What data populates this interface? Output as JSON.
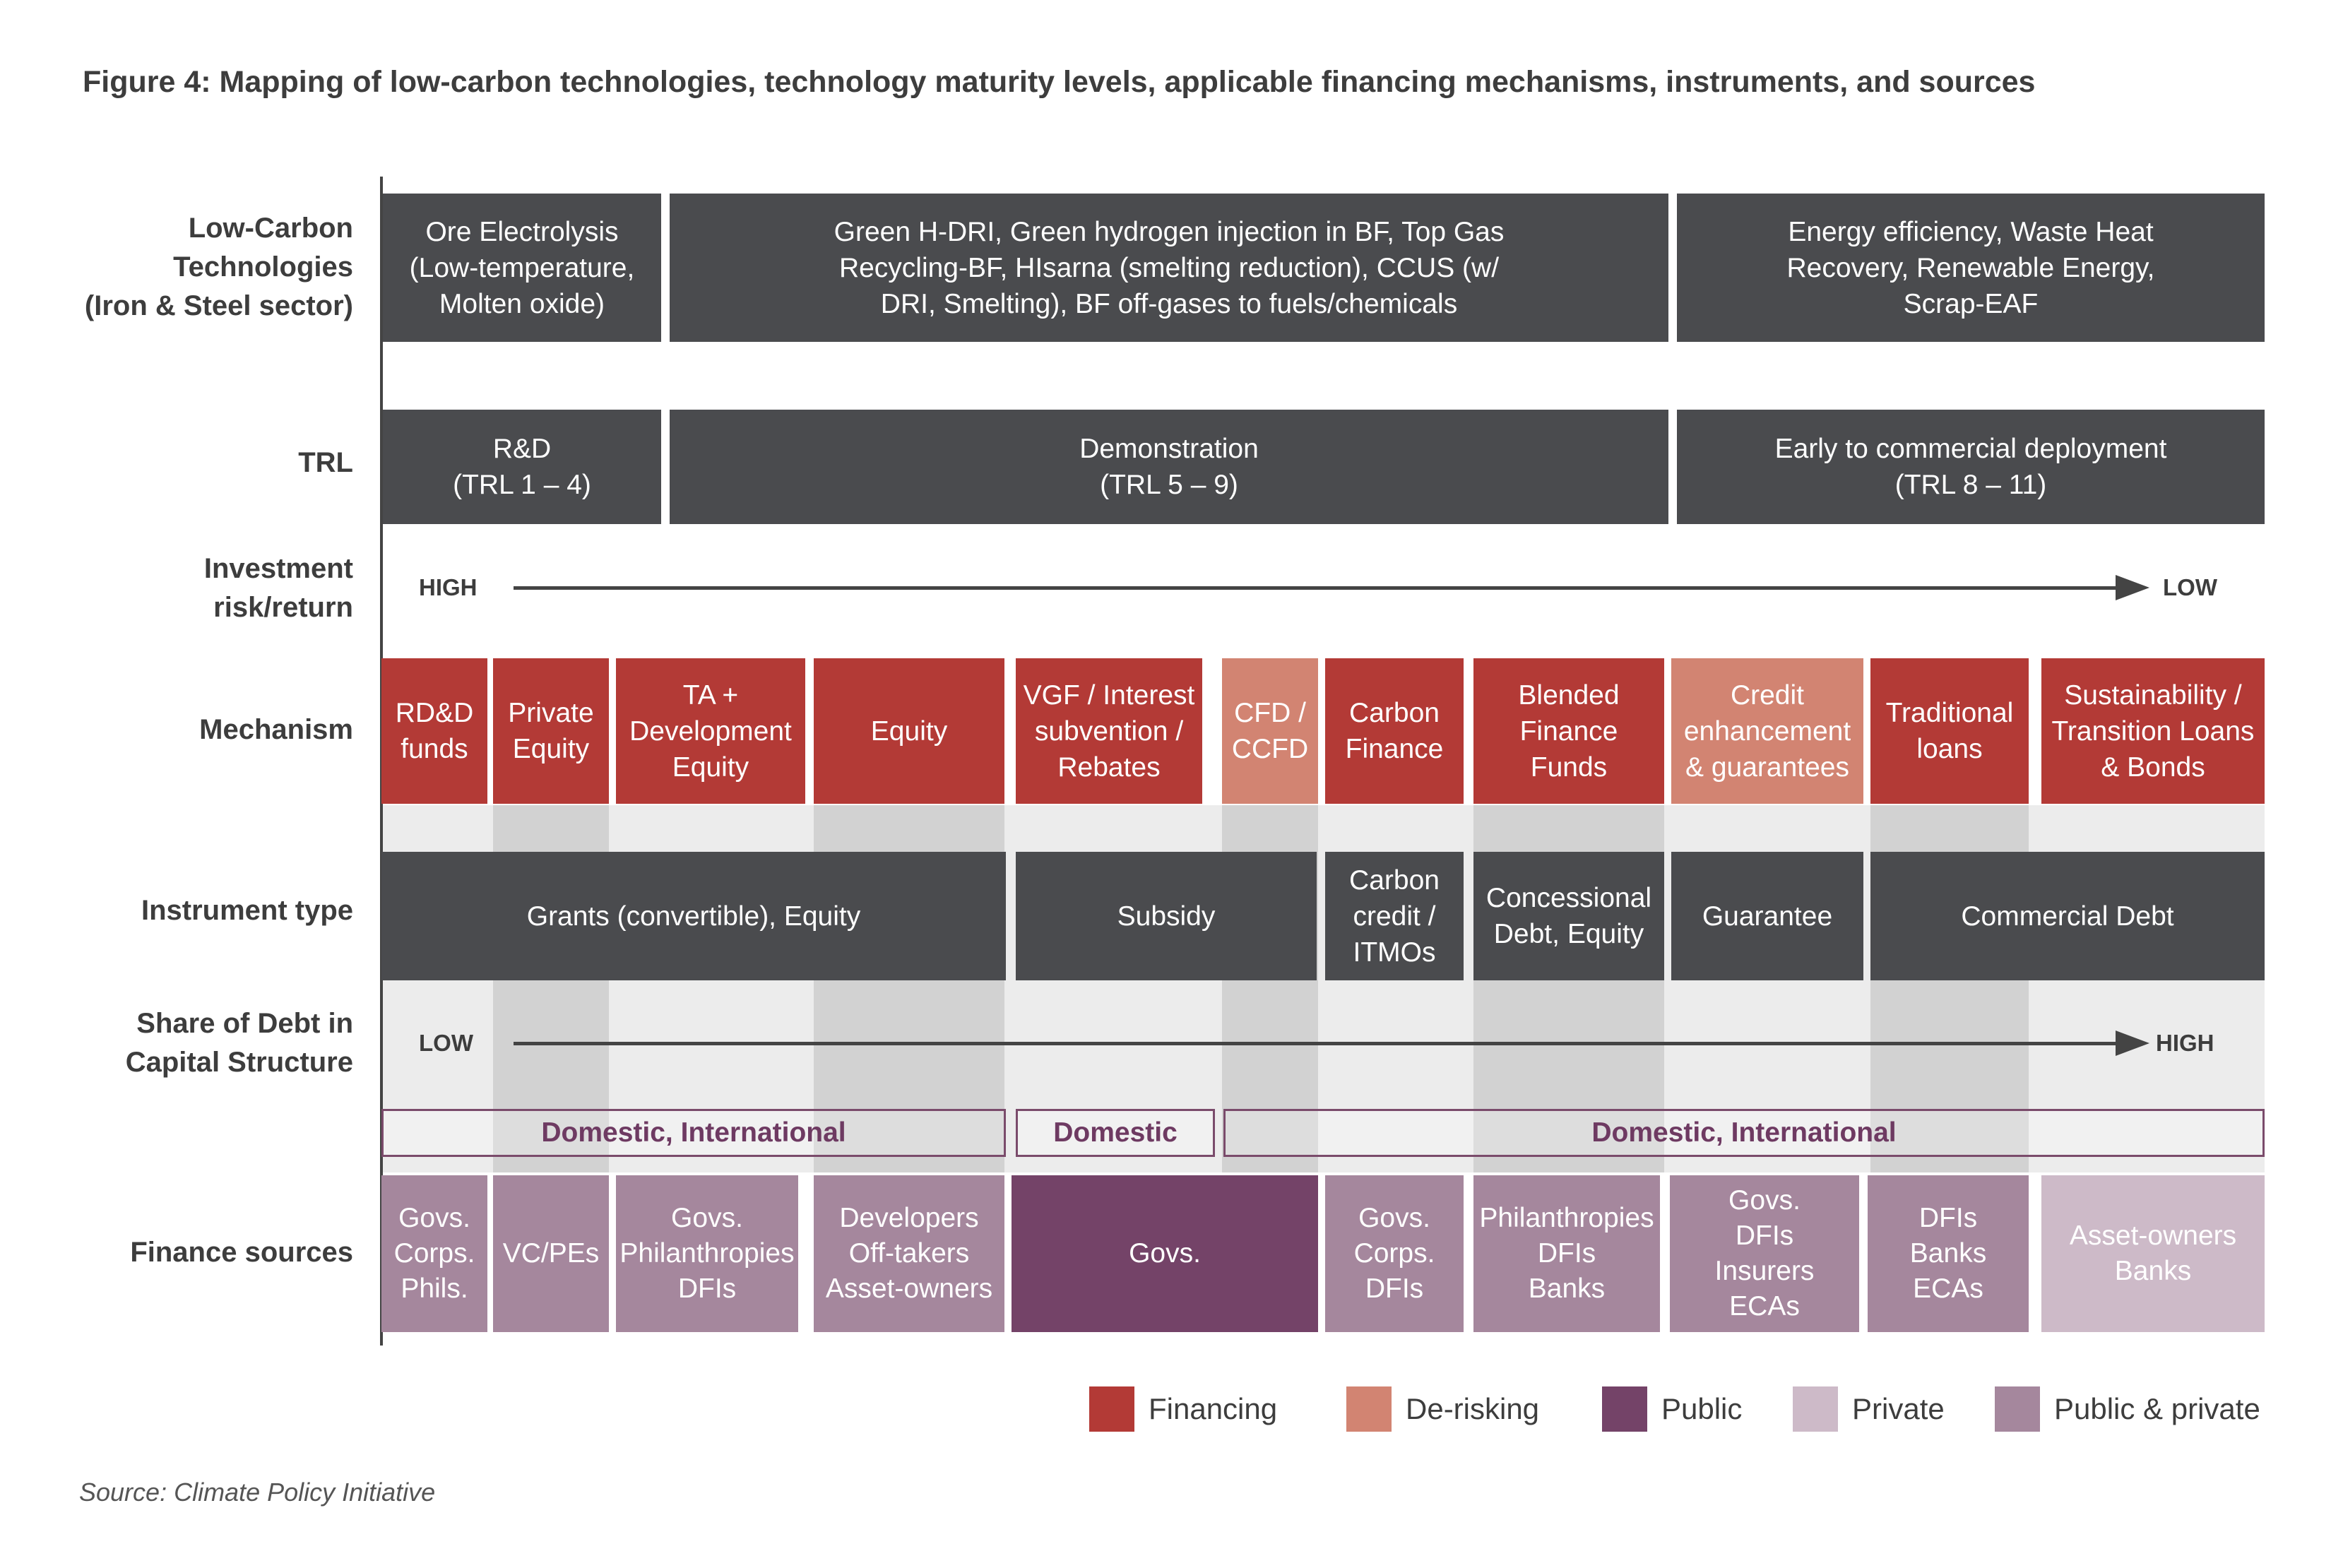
{
  "title": "Figure 4: Mapping of low-carbon technologies, technology maturity levels, applicable financing mechanisms, instruments, and sources",
  "row_labels": {
    "technologies": [
      "Low-Carbon",
      "Technologies",
      "(Iron & Steel sector)"
    ],
    "trl": [
      "TRL"
    ],
    "risk": [
      "Investment",
      "risk/return"
    ],
    "mechanism": [
      "Mechanism"
    ],
    "instrument": [
      "Instrument type"
    ],
    "debt_share": [
      "Share of Debt in",
      "Capital Structure"
    ],
    "sources": [
      "Finance sources"
    ]
  },
  "technologies": [
    [
      "Ore Electrolysis",
      "(Low-temperature,",
      "Molten oxide)"
    ],
    [
      "Green H-DRI, Green hydrogen injection in BF, Top Gas",
      "Recycling-BF, HIsarna (smelting reduction), CCUS (w/",
      "DRI, Smelting), BF off-gases to fuels/chemicals"
    ],
    [
      "Energy efficiency, Waste Heat",
      "Recovery, Renewable Energy,",
      "Scrap-EAF"
    ]
  ],
  "trl": [
    [
      "R&D",
      "(TRL 1 – 4)"
    ],
    [
      "Demonstration",
      "(TRL 5 – 9)"
    ],
    [
      "Early to commercial deployment",
      "(TRL 8 – 11)"
    ]
  ],
  "risk_arrow": {
    "start": "HIGH",
    "end": "LOW"
  },
  "mechanisms": [
    {
      "lines": [
        "RD&D",
        "funds"
      ],
      "category": "Financing"
    },
    {
      "lines": [
        "Private",
        "Equity"
      ],
      "category": "Financing"
    },
    {
      "lines": [
        "TA +",
        "Development",
        "Equity"
      ],
      "category": "Financing"
    },
    {
      "lines": [
        "Equity"
      ],
      "category": "Financing"
    },
    {
      "lines": [
        "VGF / Interest",
        "subvention /",
        "Rebates"
      ],
      "category": "Financing"
    },
    {
      "lines": [
        "CFD /",
        "CCFD"
      ],
      "category": "De-risking"
    },
    {
      "lines": [
        "Carbon",
        "Finance"
      ],
      "category": "Financing"
    },
    {
      "lines": [
        "Blended",
        "Finance",
        "Funds"
      ],
      "category": "Financing"
    },
    {
      "lines": [
        "Credit",
        "enhancement",
        "& guarantees"
      ],
      "category": "De-risking"
    },
    {
      "lines": [
        "Traditional",
        "loans"
      ],
      "category": "Financing"
    },
    {
      "lines": [
        "Sustainability /",
        "Transition Loans",
        "& Bonds"
      ],
      "category": "Financing"
    }
  ],
  "instruments": [
    [
      "Grants (convertible), Equity"
    ],
    [
      "Subsidy"
    ],
    [
      "Carbon",
      "credit /",
      "ITMOs"
    ],
    [
      "Concessional",
      "Debt, Equity"
    ],
    [
      "Guarantee"
    ],
    [
      "Commercial Debt"
    ]
  ],
  "debt_arrow": {
    "start": "LOW",
    "end": "HIGH"
  },
  "scopes": [
    "Domestic, International",
    "Domestic",
    "Domestic, International"
  ],
  "sources": [
    {
      "lines": [
        "Govs.",
        "Corps.",
        "Phils."
      ],
      "category": "Public & private"
    },
    {
      "lines": [
        "VC/PEs"
      ],
      "category": "Public & private"
    },
    {
      "lines": [
        "Govs.",
        "Philanthropies",
        "DFIs"
      ],
      "category": "Public & private"
    },
    {
      "lines": [
        "Developers",
        "Off-takers",
        "Asset-owners"
      ],
      "category": "Public & private"
    },
    {
      "lines": [
        "Govs."
      ],
      "category": "Public"
    },
    {
      "lines": [
        "Govs.",
        "Corps.",
        "DFIs"
      ],
      "category": "Public & private"
    },
    {
      "lines": [
        "Philanthropies",
        "DFIs",
        "Banks"
      ],
      "category": "Public & private"
    },
    {
      "lines": [
        "Govs.",
        "DFIs",
        "Insurers",
        "ECAs"
      ],
      "category": "Public & private"
    },
    {
      "lines": [
        "DFIs",
        "Banks",
        "ECAs"
      ],
      "category": "Public & private"
    },
    {
      "lines": [
        "Asset-owners",
        "Banks"
      ],
      "category": "Private"
    }
  ],
  "legend": [
    {
      "label": "Financing",
      "color": "#b33a36"
    },
    {
      "label": "De-risking",
      "color": "#d28472"
    },
    {
      "label": "Public",
      "color": "#744368"
    },
    {
      "label": "Private",
      "color": "#cdbac8"
    },
    {
      "label": "Public & private",
      "color": "#a5879d"
    }
  ],
  "source_note": "Source: Climate Policy Initiative"
}
